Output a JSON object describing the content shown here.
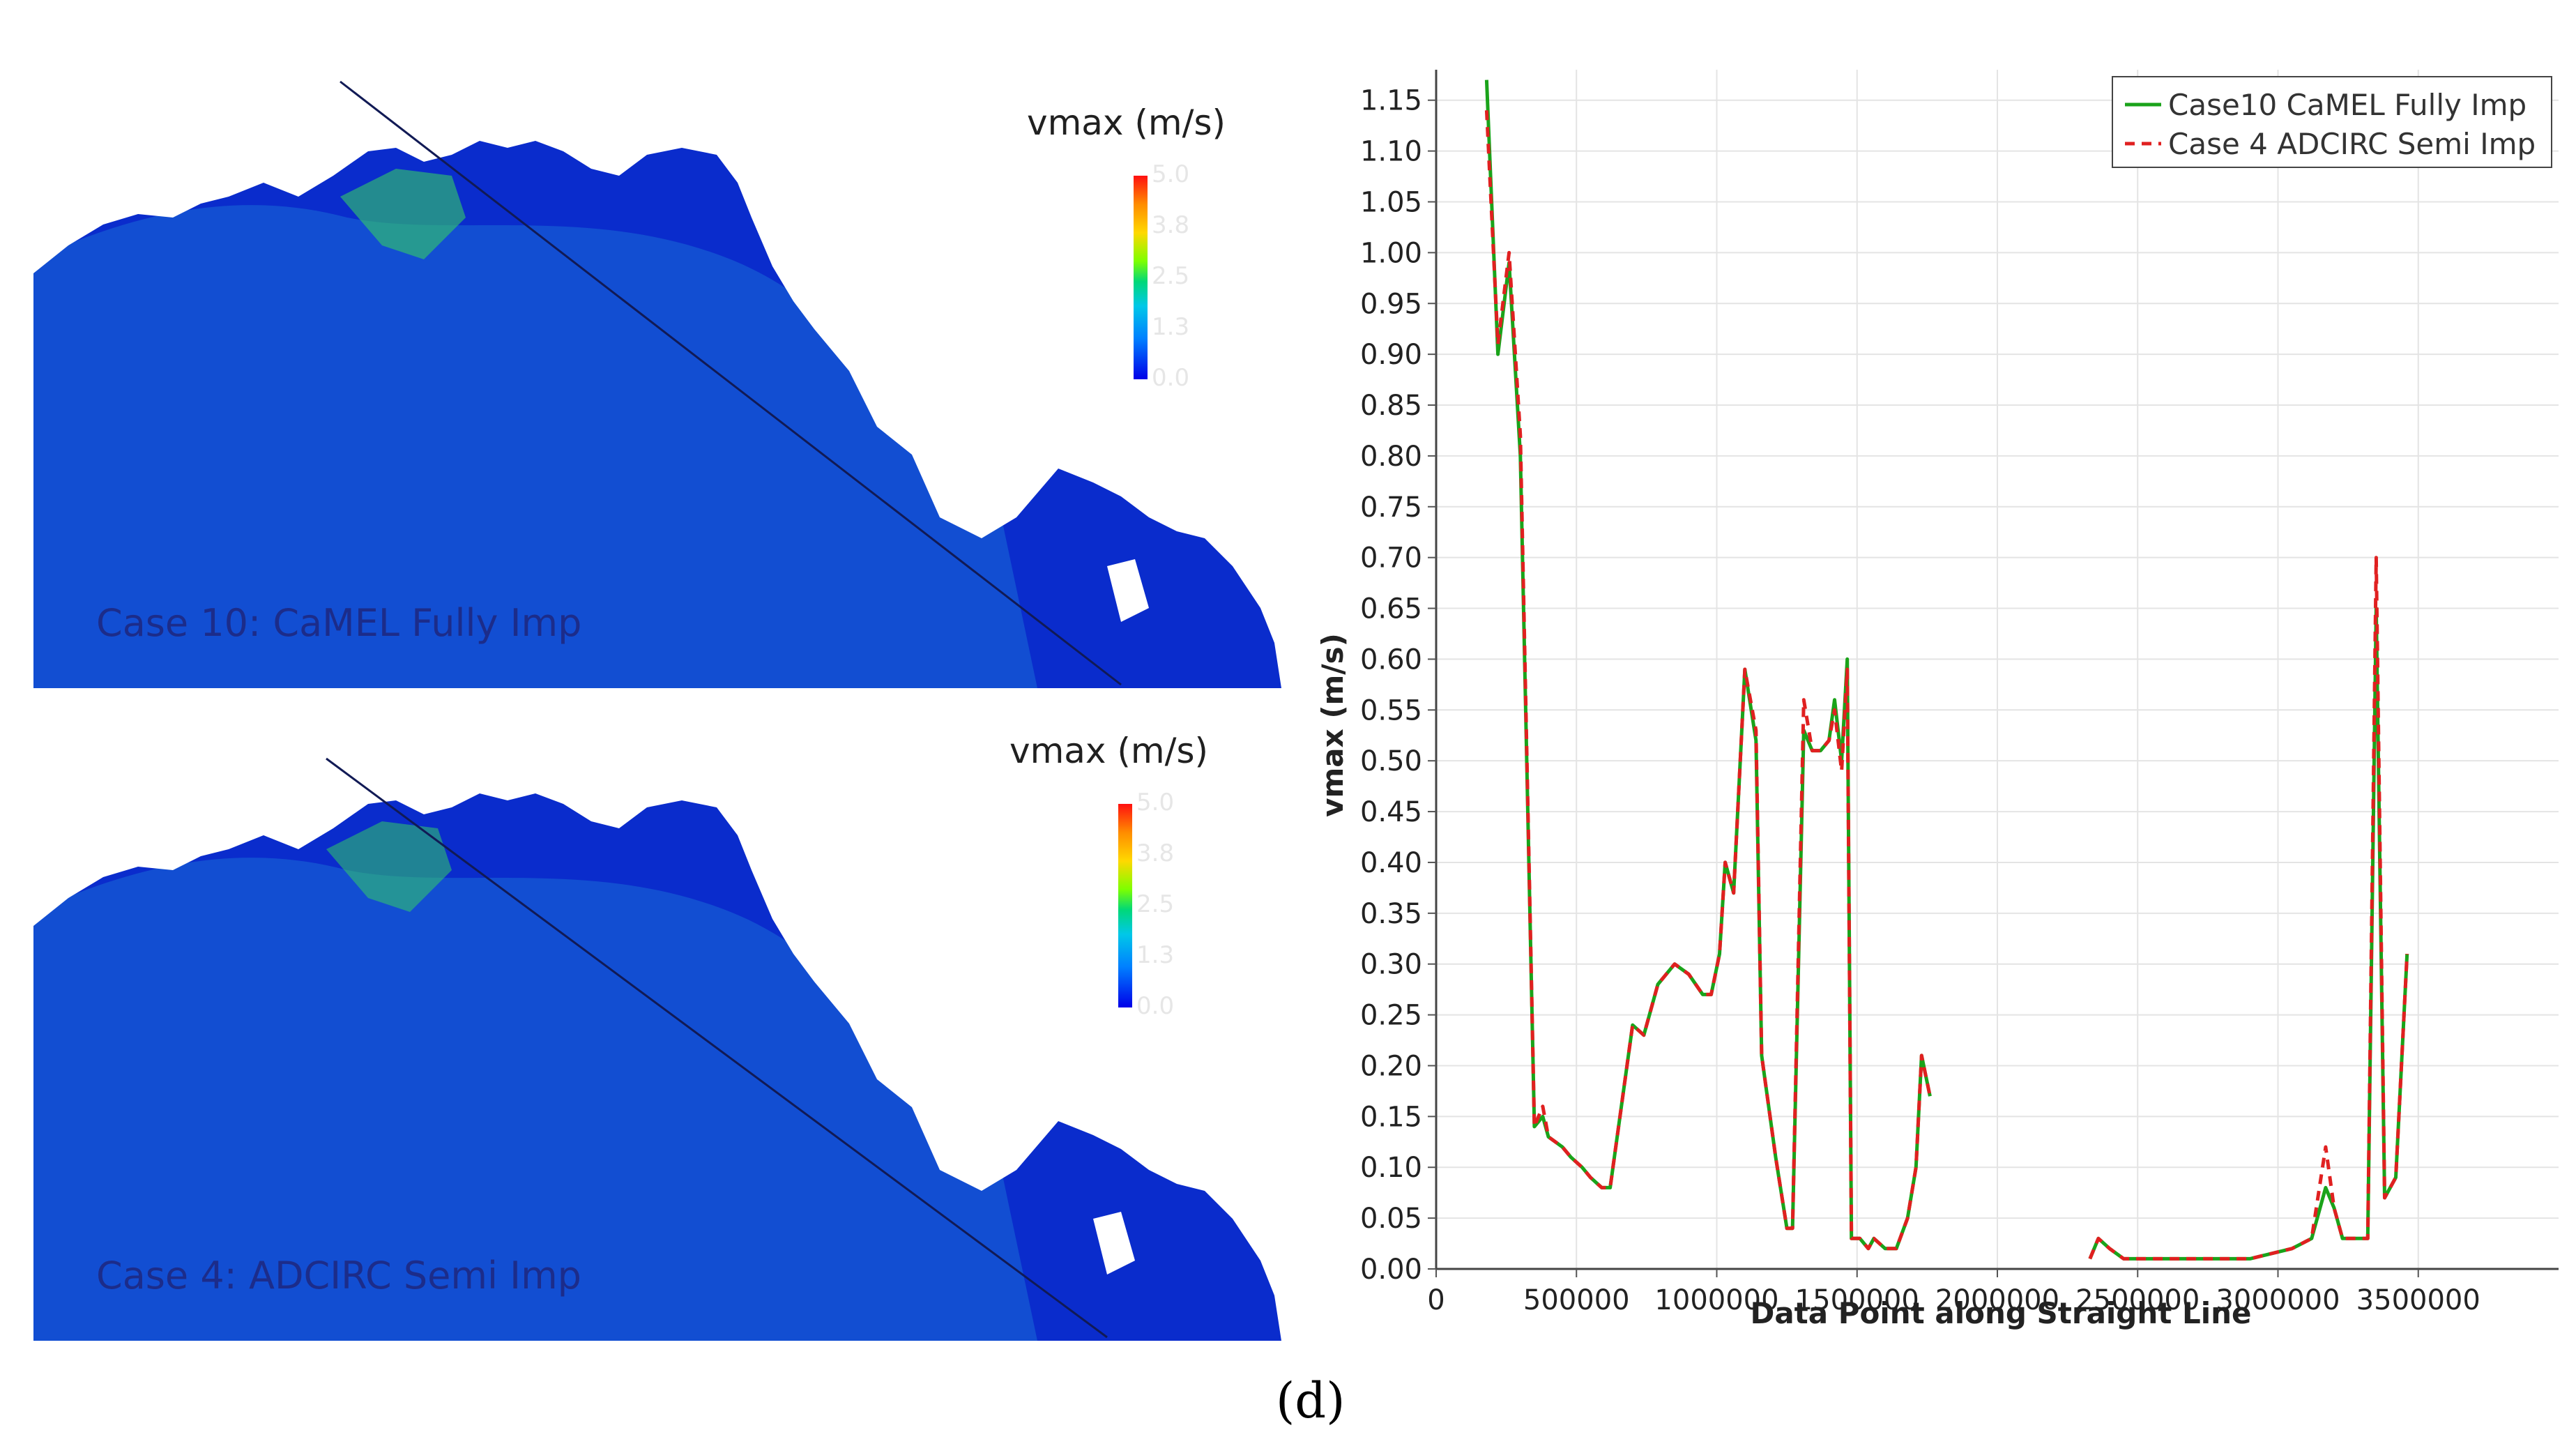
{
  "maps": [
    {
      "title": "Case 10: CaMEL Fully Imp",
      "colorbar": {
        "title": "vmax (m/s)",
        "ticks": [
          "5.0",
          "3.8",
          "2.5",
          "1.3",
          "0.0"
        ]
      }
    },
    {
      "title": "Case 4: ADCIRC Semi Imp",
      "colorbar": {
        "title": "vmax (m/s)",
        "ticks": [
          "5.0",
          "3.8",
          "2.5",
          "1.3",
          "0.0"
        ]
      }
    }
  ],
  "subcaption": "(d)",
  "colors": {
    "ocean": "#0a2ccc",
    "shelf": "#1a6fd8",
    "series1": "#1aa31a",
    "series2": "#e02020"
  },
  "chart_data": {
    "type": "line",
    "title": "",
    "xlabel": "Data Point along Straight Line",
    "ylabel": "vmax (m/s)",
    "xlim": [
      0,
      4000000
    ],
    "ylim": [
      0,
      1.18
    ],
    "xticks": [
      0,
      500000,
      1000000,
      1500000,
      2000000,
      2500000,
      3000000,
      3500000
    ],
    "yticks": [
      0.0,
      0.05,
      0.1,
      0.15,
      0.2,
      0.25,
      0.3,
      0.35,
      0.4,
      0.45,
      0.5,
      0.55,
      0.6,
      0.65,
      0.7,
      0.75,
      0.8,
      0.85,
      0.9,
      0.95,
      1.0,
      1.05,
      1.1,
      1.15
    ],
    "grid": true,
    "legend_position": "top-right",
    "series": [
      {
        "name": "Case10 CaMEL Fully Imp",
        "style": "solid",
        "segments": [
          [
            [
              180000,
              1.17
            ],
            [
              220000,
              0.9
            ],
            [
              260000,
              0.99
            ],
            [
              300000,
              0.8
            ],
            [
              350000,
              0.14
            ],
            [
              380000,
              0.15
            ],
            [
              400000,
              0.13
            ],
            [
              450000,
              0.12
            ],
            [
              480000,
              0.11
            ],
            [
              520000,
              0.1
            ],
            [
              550000,
              0.09
            ],
            [
              590000,
              0.08
            ],
            [
              620000,
              0.08
            ],
            [
              700000,
              0.24
            ],
            [
              740000,
              0.23
            ],
            [
              790000,
              0.28
            ],
            [
              850000,
              0.3
            ],
            [
              900000,
              0.29
            ],
            [
              950000,
              0.27
            ],
            [
              980000,
              0.27
            ],
            [
              1010000,
              0.31
            ],
            [
              1030000,
              0.4
            ],
            [
              1060000,
              0.37
            ],
            [
              1100000,
              0.59
            ],
            [
              1140000,
              0.52
            ],
            [
              1160000,
              0.21
            ],
            [
              1210000,
              0.11
            ],
            [
              1250000,
              0.04
            ],
            [
              1270000,
              0.04
            ],
            [
              1310000,
              0.53
            ],
            [
              1340000,
              0.51
            ],
            [
              1370000,
              0.51
            ],
            [
              1400000,
              0.52
            ],
            [
              1420000,
              0.56
            ],
            [
              1445000,
              0.5
            ],
            [
              1465000,
              0.6
            ],
            [
              1480000,
              0.03
            ],
            [
              1510000,
              0.03
            ],
            [
              1540000,
              0.02
            ],
            [
              1560000,
              0.03
            ],
            [
              1600000,
              0.02
            ],
            [
              1640000,
              0.02
            ],
            [
              1680000,
              0.05
            ],
            [
              1710000,
              0.1
            ],
            [
              1730000,
              0.21
            ],
            [
              1760000,
              0.17
            ]
          ],
          [
            [
              2330000,
              0.01
            ],
            [
              2360000,
              0.03
            ],
            [
              2400000,
              0.02
            ],
            [
              2450000,
              0.01
            ],
            [
              2550000,
              0.01
            ],
            [
              2700000,
              0.01
            ],
            [
              2900000,
              0.01
            ],
            [
              3050000,
              0.02
            ],
            [
              3120000,
              0.03
            ],
            [
              3170000,
              0.08
            ],
            [
              3200000,
              0.06
            ],
            [
              3230000,
              0.03
            ],
            [
              3300000,
              0.03
            ],
            [
              3320000,
              0.03
            ],
            [
              3350000,
              0.65
            ],
            [
              3380000,
              0.07
            ],
            [
              3420000,
              0.09
            ],
            [
              3460000,
              0.31
            ]
          ]
        ]
      },
      {
        "name": "Case 4 ADCIRC Semi Imp",
        "style": "dashed",
        "segments": [
          [
            [
              180000,
              1.14
            ],
            [
              220000,
              0.91
            ],
            [
              260000,
              1.0
            ],
            [
              300000,
              0.82
            ],
            [
              350000,
              0.14
            ],
            [
              380000,
              0.16
            ],
            [
              400000,
              0.13
            ],
            [
              450000,
              0.12
            ],
            [
              480000,
              0.11
            ],
            [
              520000,
              0.1
            ],
            [
              550000,
              0.09
            ],
            [
              590000,
              0.08
            ],
            [
              620000,
              0.08
            ],
            [
              700000,
              0.24
            ],
            [
              740000,
              0.23
            ],
            [
              790000,
              0.28
            ],
            [
              850000,
              0.3
            ],
            [
              900000,
              0.29
            ],
            [
              950000,
              0.27
            ],
            [
              980000,
              0.27
            ],
            [
              1010000,
              0.31
            ],
            [
              1030000,
              0.4
            ],
            [
              1060000,
              0.37
            ],
            [
              1100000,
              0.59
            ],
            [
              1140000,
              0.53
            ],
            [
              1160000,
              0.21
            ],
            [
              1210000,
              0.11
            ],
            [
              1250000,
              0.04
            ],
            [
              1270000,
              0.04
            ],
            [
              1310000,
              0.56
            ],
            [
              1340000,
              0.51
            ],
            [
              1370000,
              0.51
            ],
            [
              1400000,
              0.52
            ],
            [
              1420000,
              0.55
            ],
            [
              1445000,
              0.49
            ],
            [
              1465000,
              0.59
            ],
            [
              1480000,
              0.03
            ],
            [
              1510000,
              0.03
            ],
            [
              1540000,
              0.02
            ],
            [
              1560000,
              0.03
            ],
            [
              1600000,
              0.02
            ],
            [
              1640000,
              0.02
            ],
            [
              1680000,
              0.05
            ],
            [
              1710000,
              0.1
            ],
            [
              1730000,
              0.21
            ],
            [
              1760000,
              0.17
            ]
          ],
          [
            [
              2330000,
              0.01
            ],
            [
              2360000,
              0.03
            ],
            [
              2400000,
              0.02
            ],
            [
              2450000,
              0.01
            ],
            [
              2550000,
              0.01
            ],
            [
              2700000,
              0.01
            ],
            [
              2900000,
              0.01
            ],
            [
              3050000,
              0.02
            ],
            [
              3120000,
              0.03
            ],
            [
              3170000,
              0.12
            ],
            [
              3200000,
              0.06
            ],
            [
              3230000,
              0.03
            ],
            [
              3300000,
              0.03
            ],
            [
              3320000,
              0.03
            ],
            [
              3350000,
              0.7
            ],
            [
              3380000,
              0.07
            ],
            [
              3420000,
              0.09
            ],
            [
              3460000,
              0.31
            ]
          ]
        ]
      }
    ]
  }
}
